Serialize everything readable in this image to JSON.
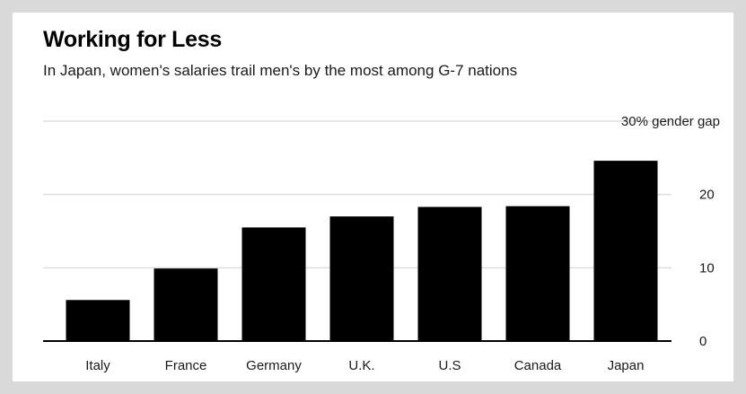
{
  "chart_data": {
    "type": "bar",
    "title": "Working for Less",
    "subtitle": "In Japan, women's salaries trail men's by the most among G-7 nations",
    "categories": [
      "Italy",
      "France",
      "Germany",
      "U.K.",
      "U.S",
      "Canada",
      "Japan"
    ],
    "values": [
      5.6,
      9.9,
      15.5,
      17.0,
      18.3,
      18.4,
      24.6
    ],
    "ylim": [
      0,
      30
    ],
    "yticks": [
      0,
      10,
      20
    ],
    "top_tick_label": "30% gender gap",
    "grid": true,
    "colors": {
      "bar": "#000000",
      "grid": "#dddddd",
      "axis": "#000000"
    }
  }
}
